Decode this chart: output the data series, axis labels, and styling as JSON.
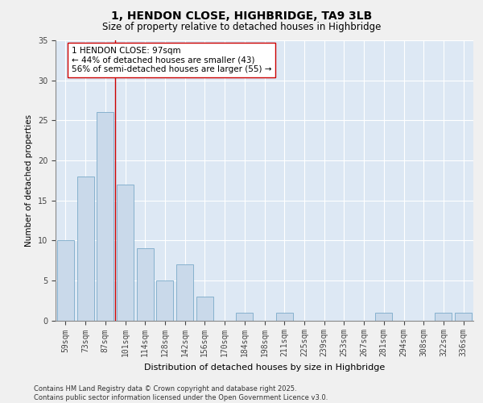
{
  "title": "1, HENDON CLOSE, HIGHBRIDGE, TA9 3LB",
  "subtitle": "Size of property relative to detached houses in Highbridge",
  "xlabel": "Distribution of detached houses by size in Highbridge",
  "ylabel": "Number of detached properties",
  "categories": [
    "59sqm",
    "73sqm",
    "87sqm",
    "101sqm",
    "114sqm",
    "128sqm",
    "142sqm",
    "156sqm",
    "170sqm",
    "184sqm",
    "198sqm",
    "211sqm",
    "225sqm",
    "239sqm",
    "253sqm",
    "267sqm",
    "281sqm",
    "294sqm",
    "308sqm",
    "322sqm",
    "336sqm"
  ],
  "values": [
    10,
    18,
    26,
    17,
    9,
    5,
    7,
    3,
    0,
    1,
    0,
    1,
    0,
    0,
    0,
    0,
    1,
    0,
    0,
    1,
    1
  ],
  "bar_color": "#c9d9ea",
  "bar_edgecolor": "#7aaac8",
  "bg_color": "#dde8f4",
  "grid_color": "#ffffff",
  "vline_color": "#cc0000",
  "vline_x_idx": 2.5,
  "annotation_text": "1 HENDON CLOSE: 97sqm\n← 44% of detached houses are smaller (43)\n56% of semi-detached houses are larger (55) →",
  "annotation_box_edgecolor": "#cc0000",
  "ylim": [
    0,
    35
  ],
  "yticks": [
    0,
    5,
    10,
    15,
    20,
    25,
    30,
    35
  ],
  "footer_line1": "Contains HM Land Registry data © Crown copyright and database right 2025.",
  "footer_line2": "Contains public sector information licensed under the Open Government Licence v3.0.",
  "fig_bg": "#f0f0f0"
}
